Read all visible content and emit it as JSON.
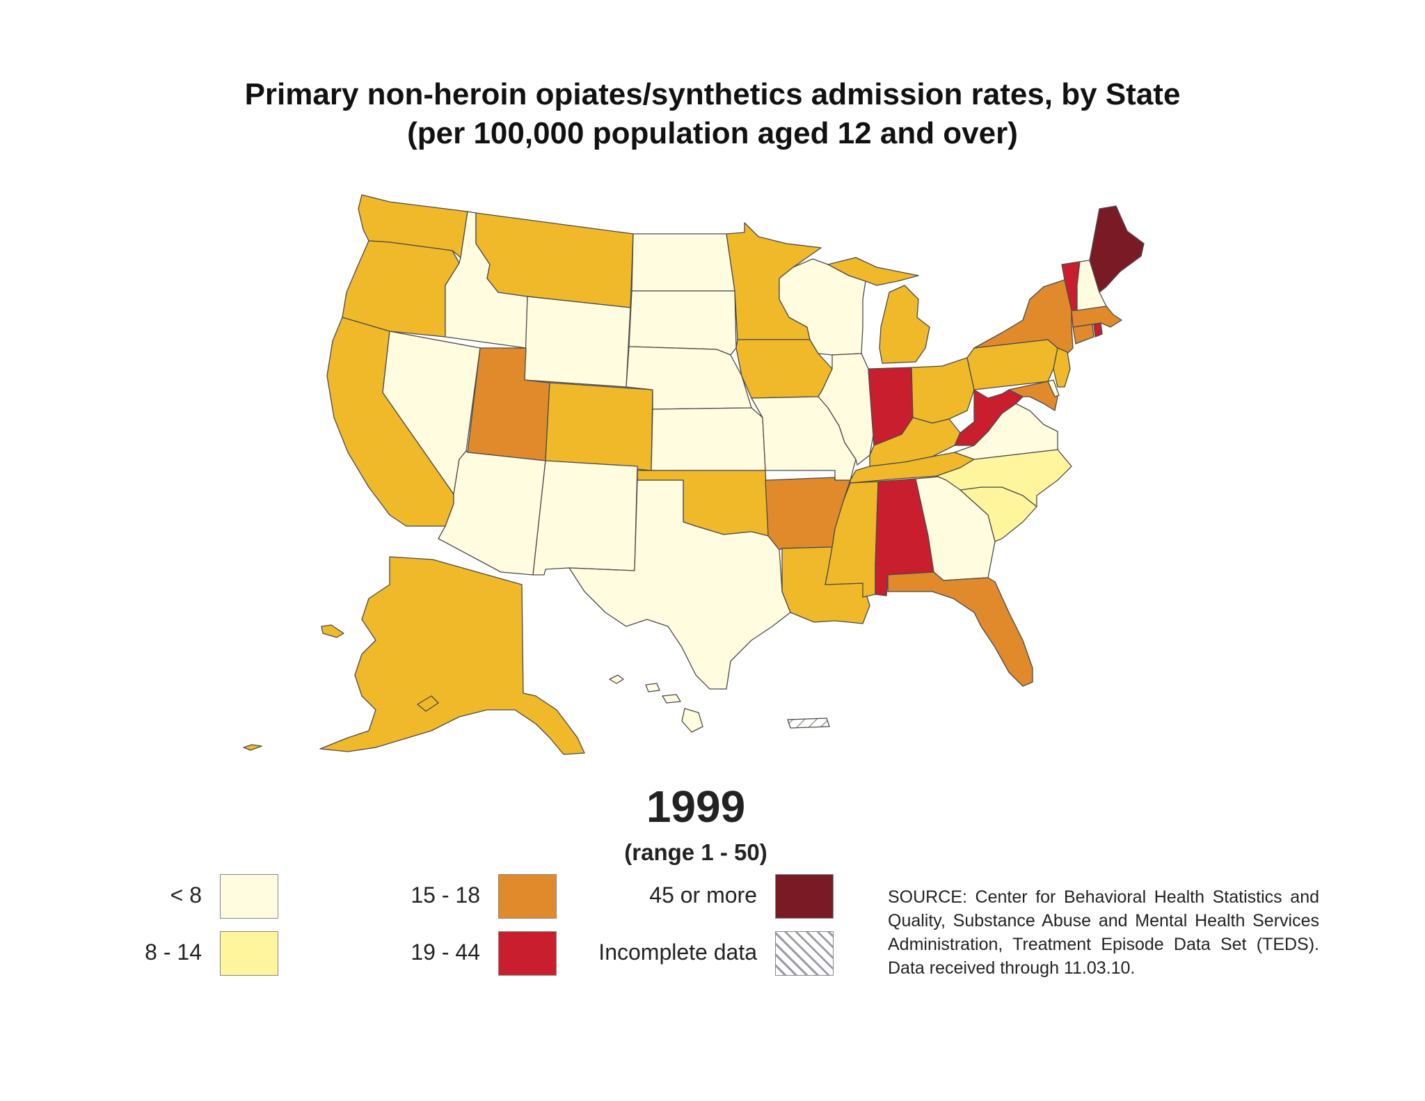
{
  "title": {
    "line1": "Primary non-heroin opiates/synthetics admission rates, by State",
    "line2": "(per 100,000 population aged 12 and over)"
  },
  "year": "1999",
  "range": "(range 1 - 50)",
  "colors": {
    "lt8": "#fffce0",
    "8to14": "#fff59d",
    "15to18_low": "#f0b92a",
    "15to18": "#e08a2c",
    "19to44": "#c81e2e",
    "45plus": "#7a1a24",
    "incomplete": "hatched"
  },
  "legend": [
    {
      "label": "< 8",
      "color": "#fffce0"
    },
    {
      "label": "8 - 14",
      "color": "#fff59d"
    },
    {
      "label": "15 - 18",
      "color": "#e08a2c"
    },
    {
      "label": "19 - 44",
      "color": "#c81e2e"
    },
    {
      "label": "45 or more",
      "color": "#7a1a24"
    },
    {
      "label": "Incomplete data",
      "color": "hatched"
    }
  ],
  "source": "SOURCE: Center for Behavioral Health Statistics and Quality, Substance Abuse and Mental Health Services Administration, Treatment Episode Data Set (TEDS). Data received through 11.03.10."
}
